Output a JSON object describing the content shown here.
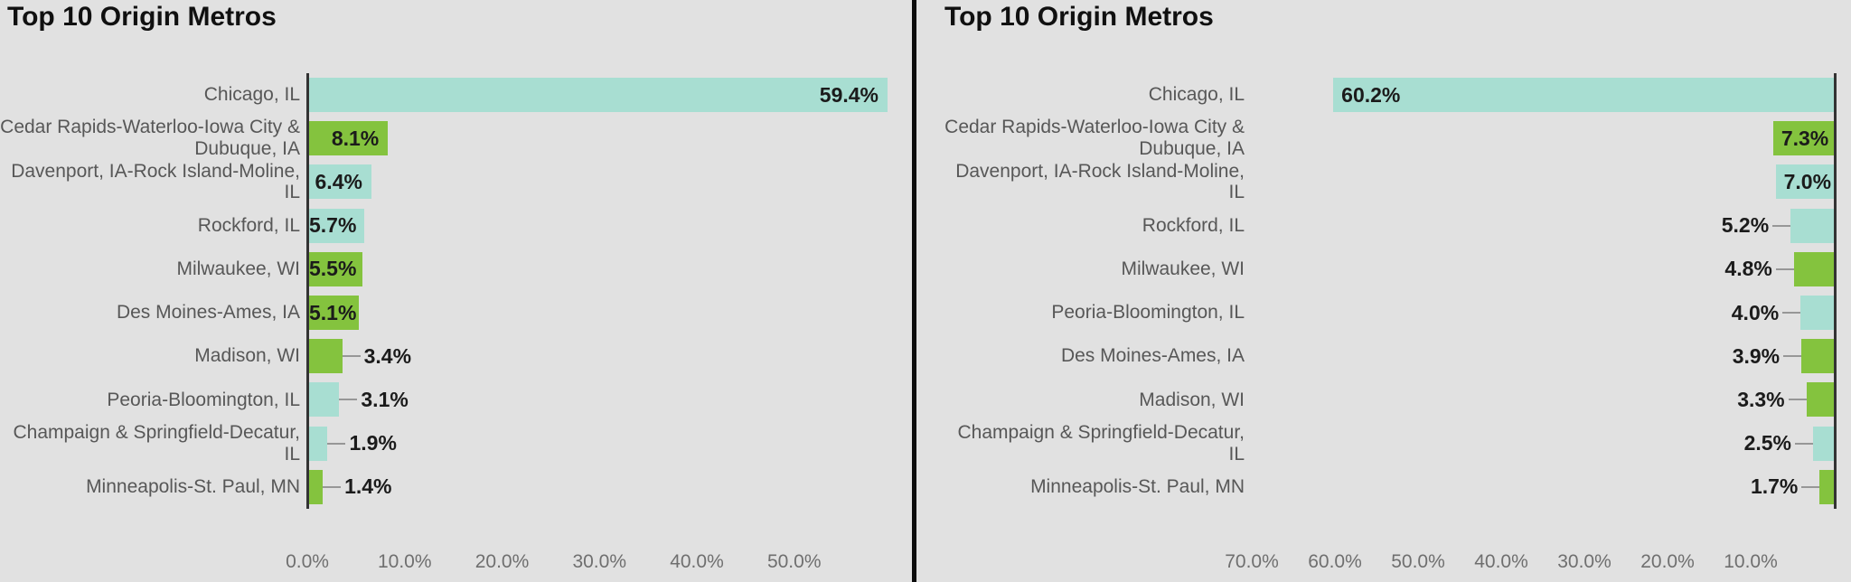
{
  "page": {
    "background": "#e1e1e1",
    "divider_color": "#0c0c0c"
  },
  "colors": {
    "teal": "#a8ded2",
    "green": "#84c33e",
    "title_text": "#101010",
    "category_text": "#575757",
    "tick_text": "#6f6f6f",
    "value_text": "#1b1b1b",
    "axis_line": "#333333",
    "leader_line": "#979797"
  },
  "chart_data": [
    {
      "type": "bar",
      "orientation": "horizontal",
      "direction": "left-to-right",
      "title": "Top 10 Origin Metros",
      "categories": [
        "Chicago, IL",
        "Cedar Rapids-Waterloo-Iowa City & Dubuque, IA",
        "Davenport, IA-Rock Island-Moline, IL",
        "Rockford, IL",
        "Milwaukee, WI",
        "Des Moines-Ames, IA",
        "Madison, WI",
        "Peoria-Bloomington, IL",
        "Champaign & Springfield-Decatur, IL",
        "Minneapolis-St. Paul, MN"
      ],
      "values": [
        59.4,
        8.1,
        6.4,
        5.7,
        5.5,
        5.1,
        3.4,
        3.1,
        1.9,
        1.4
      ],
      "value_labels": [
        "59.4%",
        "8.1%",
        "6.4%",
        "5.7%",
        "5.5%",
        "5.1%",
        "3.4%",
        "3.1%",
        "1.9%",
        "1.4%"
      ],
      "bar_color_keys": [
        "teal",
        "green",
        "teal",
        "teal",
        "green",
        "green",
        "green",
        "teal",
        "teal",
        "green"
      ],
      "value_label_inside": [
        true,
        true,
        true,
        true,
        true,
        true,
        false,
        false,
        false,
        false
      ],
      "xlim": [
        0,
        59.4
      ],
      "x_ticks": {
        "labels": [
          "0.0%",
          "10.0%",
          "20.0%",
          "30.0%",
          "40.0%",
          "50.0%"
        ],
        "values": [
          0,
          10,
          20,
          30,
          40,
          50
        ]
      },
      "grid": false,
      "legend": "none"
    },
    {
      "type": "bar",
      "orientation": "horizontal",
      "direction": "right-to-left",
      "title": "Top 10 Origin Metros",
      "categories": [
        "Chicago, IL",
        "Cedar Rapids-Waterloo-Iowa City & Dubuque, IA",
        "Davenport, IA-Rock Island-Moline, IL",
        "Rockford, IL",
        "Milwaukee, WI",
        "Peoria-Bloomington, IL",
        "Des Moines-Ames, IA",
        "Madison, WI",
        "Champaign & Springfield-Decatur, IL",
        "Minneapolis-St. Paul, MN"
      ],
      "values": [
        60.2,
        7.3,
        7.0,
        5.2,
        4.8,
        4.0,
        3.9,
        3.3,
        2.5,
        1.7
      ],
      "value_labels": [
        "60.2%",
        "7.3%",
        "7.0%",
        "5.2%",
        "4.8%",
        "4.0%",
        "3.9%",
        "3.3%",
        "2.5%",
        "1.7%"
      ],
      "bar_color_keys": [
        "teal",
        "green",
        "teal",
        "teal",
        "green",
        "teal",
        "green",
        "green",
        "teal",
        "green"
      ],
      "value_label_inside": [
        true,
        true,
        true,
        false,
        false,
        false,
        false,
        false,
        false,
        false
      ],
      "xlim": [
        0,
        70
      ],
      "x_ticks": {
        "labels": [
          "70.0%",
          "60.0%",
          "50.0%",
          "40.0%",
          "30.0%",
          "20.0%",
          "10.0%"
        ],
        "values": [
          70,
          60,
          50,
          40,
          30,
          20,
          10
        ]
      },
      "grid": false,
      "legend": "none"
    }
  ]
}
